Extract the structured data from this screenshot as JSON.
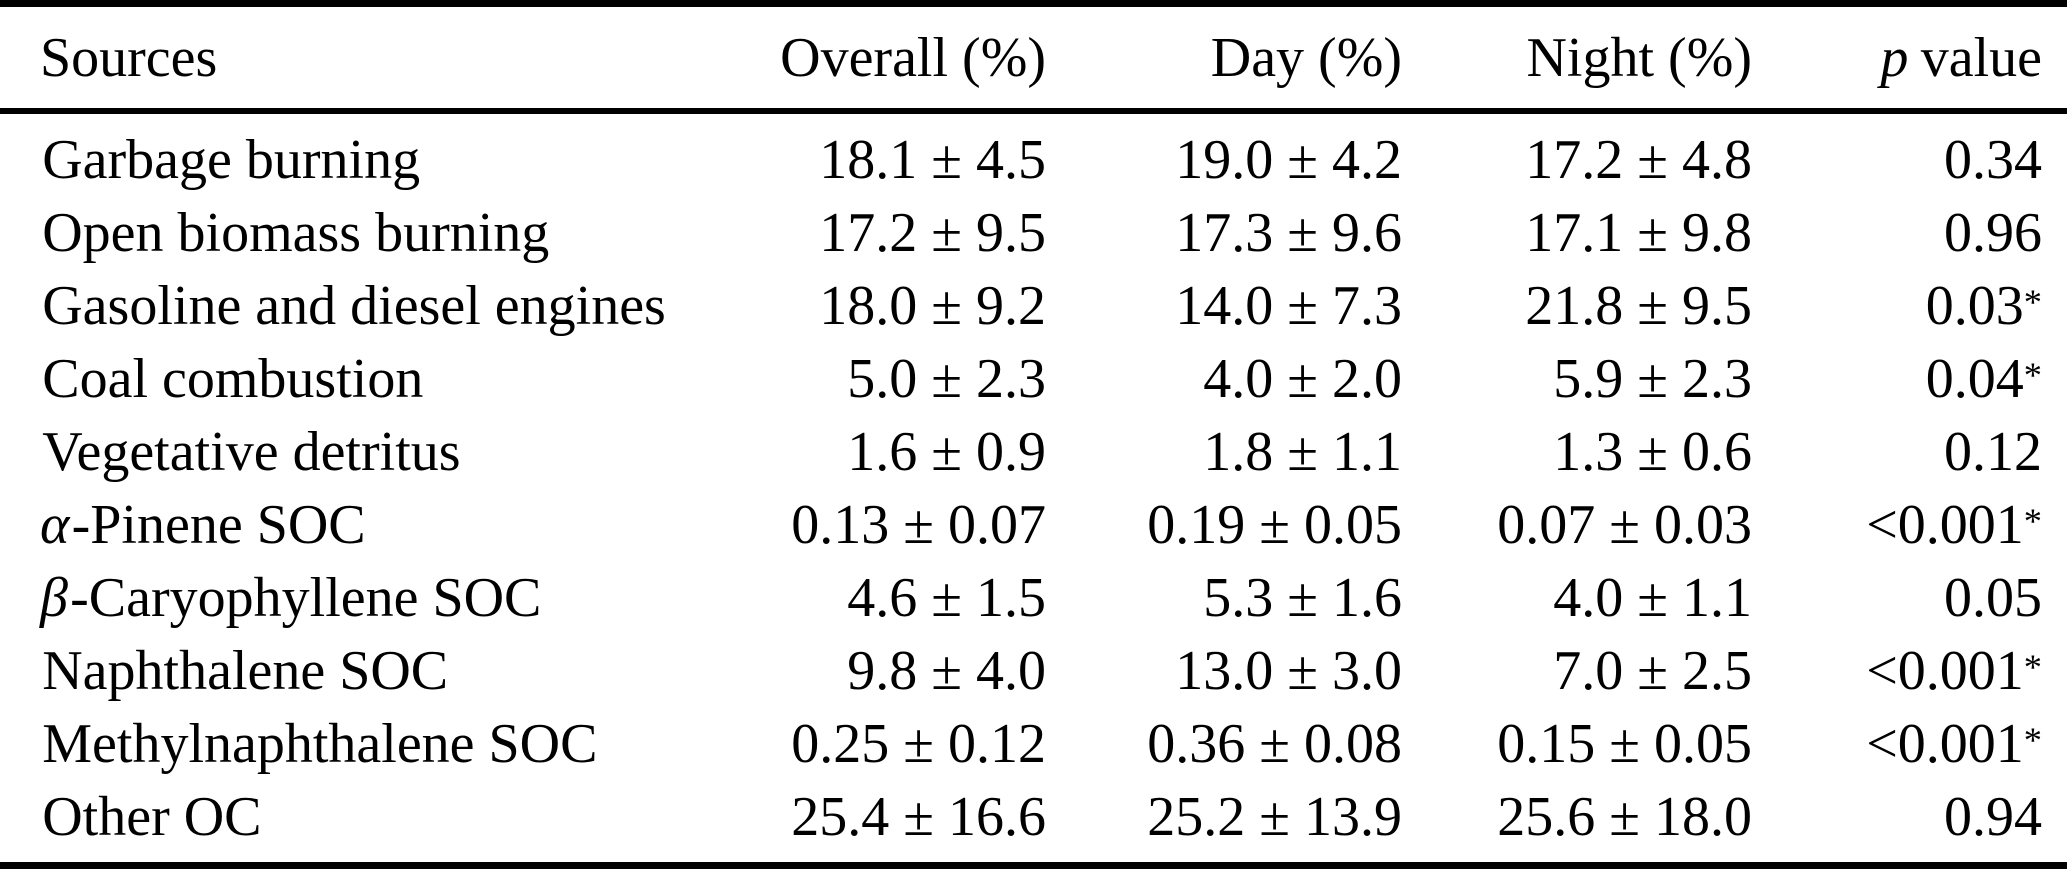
{
  "colors": {
    "background": "#ffffff",
    "text": "#000000",
    "rules": "#000000"
  },
  "table": {
    "header": {
      "sources": "Sources",
      "overall": "Overall (%)",
      "day": "Day (%)",
      "night": "Night (%)",
      "p_italic": "p",
      "p_rest": "value"
    },
    "rows": [
      {
        "greek": "",
        "name": "Garbage burning",
        "overall": "18.1 ± 4.5",
        "day": "19.0 ± 4.2",
        "night": "17.2 ± 4.8",
        "p": "0.34",
        "star": ""
      },
      {
        "greek": "",
        "name": "Open biomass burning",
        "overall": "17.2 ± 9.5",
        "day": "17.3 ± 9.6",
        "night": "17.1 ± 9.8",
        "p": "0.96",
        "star": ""
      },
      {
        "greek": "",
        "name": "Gasoline and diesel engines",
        "overall": "18.0 ± 9.2",
        "day": "14.0 ± 7.3",
        "night": "21.8 ± 9.5",
        "p": "0.03",
        "star": "*"
      },
      {
        "greek": "",
        "name": "Coal combustion",
        "overall": "5.0 ± 2.3",
        "day": "4.0 ± 2.0",
        "night": "5.9 ± 2.3",
        "p": "0.04",
        "star": "*"
      },
      {
        "greek": "",
        "name": "Vegetative detritus",
        "overall": "1.6 ± 0.9",
        "day": "1.8 ± 1.1",
        "night": "1.3 ± 0.6",
        "p": "0.12",
        "star": ""
      },
      {
        "greek": "α",
        "name": "-Pinene SOC",
        "overall": "0.13 ± 0.07",
        "day": "0.19 ± 0.05",
        "night": "0.07 ± 0.03",
        "p": "<0.001",
        "star": "*"
      },
      {
        "greek": "β",
        "name": "-Caryophyllene SOC",
        "overall": "4.6 ± 1.5",
        "day": "5.3 ± 1.6",
        "night": "4.0 ± 1.1",
        "p": "0.05",
        "star": ""
      },
      {
        "greek": "",
        "name": "Naphthalene SOC",
        "overall": "9.8 ± 4.0",
        "day": "13.0 ± 3.0",
        "night": "7.0 ± 2.5",
        "p": "<0.001",
        "star": "*"
      },
      {
        "greek": "",
        "name": "Methylnaphthalene SOC",
        "overall": "0.25 ± 0.12",
        "day": "0.36 ± 0.08",
        "night": "0.15 ± 0.05",
        "p": "<0.001",
        "star": "*"
      },
      {
        "greek": "",
        "name": "Other OC",
        "overall": "25.4 ± 16.6",
        "day": "25.2 ± 13.9",
        "night": "25.6 ± 18.0",
        "p": "0.94",
        "star": ""
      }
    ]
  }
}
